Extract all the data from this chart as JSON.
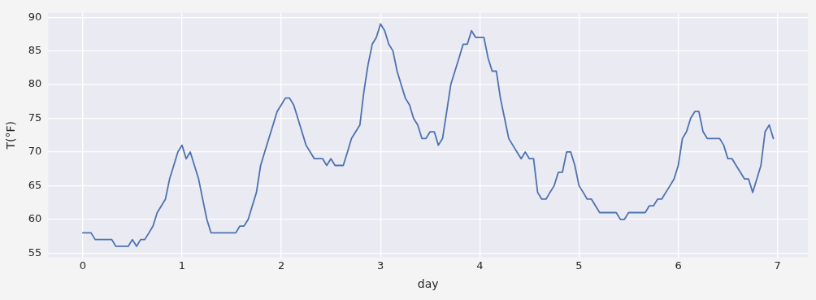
{
  "chart_data": {
    "type": "line",
    "xlabel": "day",
    "ylabel": "T(°F)",
    "x": [
      0,
      0.042,
      0.083,
      0.125,
      0.167,
      0.208,
      0.25,
      0.292,
      0.333,
      0.375,
      0.417,
      0.458,
      0.5,
      0.542,
      0.583,
      0.625,
      0.667,
      0.708,
      0.75,
      0.792,
      0.833,
      0.875,
      0.917,
      0.958,
      1,
      1.042,
      1.083,
      1.125,
      1.167,
      1.208,
      1.25,
      1.292,
      1.333,
      1.375,
      1.417,
      1.458,
      1.5,
      1.542,
      1.583,
      1.625,
      1.667,
      1.708,
      1.75,
      1.792,
      1.833,
      1.875,
      1.917,
      1.958,
      2,
      2.042,
      2.083,
      2.125,
      2.167,
      2.208,
      2.25,
      2.292,
      2.333,
      2.375,
      2.417,
      2.458,
      2.5,
      2.542,
      2.583,
      2.625,
      2.667,
      2.708,
      2.75,
      2.792,
      2.833,
      2.875,
      2.917,
      2.958,
      3,
      3.042,
      3.083,
      3.125,
      3.167,
      3.208,
      3.25,
      3.292,
      3.333,
      3.375,
      3.417,
      3.458,
      3.5,
      3.542,
      3.583,
      3.625,
      3.667,
      3.708,
      3.75,
      3.792,
      3.833,
      3.875,
      3.917,
      3.958,
      4,
      4.042,
      4.083,
      4.125,
      4.167,
      4.208,
      4.25,
      4.292,
      4.333,
      4.375,
      4.417,
      4.458,
      4.5,
      4.542,
      4.583,
      4.625,
      4.667,
      4.708,
      4.75,
      4.792,
      4.833,
      4.875,
      4.917,
      4.958,
      5,
      5.042,
      5.083,
      5.125,
      5.167,
      5.208,
      5.25,
      5.292,
      5.333,
      5.375,
      5.417,
      5.458,
      5.5,
      5.542,
      5.583,
      5.625,
      5.667,
      5.708,
      5.75,
      5.792,
      5.833,
      5.875,
      5.917,
      5.958,
      6,
      6.042,
      6.083,
      6.125,
      6.167,
      6.208,
      6.25,
      6.292,
      6.333,
      6.375,
      6.417,
      6.458,
      6.5,
      6.542,
      6.583,
      6.625,
      6.667,
      6.708,
      6.75,
      6.792,
      6.833,
      6.875,
      6.917,
      6.958
    ],
    "series": [
      {
        "color": "#4c72b0",
        "values": [
          58,
          58,
          58,
          57,
          57,
          57,
          57,
          57,
          56,
          56,
          56,
          56,
          57,
          56,
          57,
          57,
          58,
          59,
          61,
          62,
          63,
          66,
          68,
          70,
          71,
          69,
          70,
          68,
          66,
          63,
          60,
          58,
          58,
          58,
          58,
          58,
          58,
          58,
          59,
          59,
          60,
          62,
          64,
          68,
          70,
          72,
          74,
          76,
          77,
          78,
          78,
          77,
          75,
          73,
          71,
          70,
          69,
          69,
          69,
          68,
          69,
          68,
          68,
          68,
          70,
          72,
          73,
          74,
          79,
          83,
          86,
          87,
          89,
          88,
          86,
          85,
          82,
          80,
          78,
          77,
          75,
          74,
          72,
          72,
          73,
          73,
          71,
          72,
          76,
          80,
          82,
          84,
          86,
          86,
          88,
          87,
          87,
          87,
          84,
          82,
          82,
          78,
          75,
          72,
          71,
          70,
          69,
          70,
          69,
          69,
          64,
          63,
          63,
          64,
          65,
          67,
          67,
          70,
          70,
          68,
          65,
          64,
          63,
          63,
          62,
          61,
          61,
          61,
          61,
          61,
          60,
          60,
          61,
          61,
          61,
          61,
          61,
          62,
          62,
          63,
          63,
          64,
          65,
          66,
          68,
          72,
          73,
          75,
          76,
          76,
          73,
          72,
          72,
          72,
          72,
          71,
          69,
          69,
          68,
          67,
          66,
          66,
          64,
          66,
          68,
          73,
          74,
          72
        ]
      }
    ],
    "xlim": [
      -0.348,
      7.306
    ],
    "xticks": [
      0,
      1,
      2,
      3,
      4,
      5,
      6,
      7
    ],
    "ylim": [
      54.35,
      90.65
    ],
    "yticks": [
      55,
      60,
      65,
      70,
      75,
      80,
      85,
      90
    ],
    "grid": true,
    "legend": false,
    "marker": "none",
    "line_style": "solid"
  }
}
